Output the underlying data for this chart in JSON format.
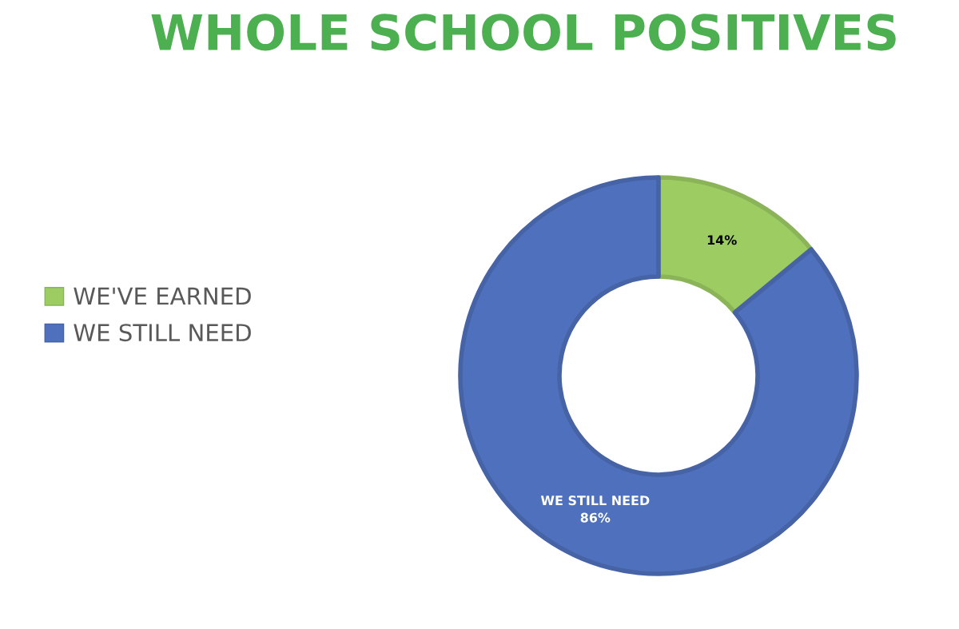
{
  "chart_data": {
    "type": "donut",
    "title": "WHOLE SCHOOL POSITIVES",
    "categories": [
      "WE'VE EARNED",
      "WE STILL NEED"
    ],
    "values": [
      14,
      86
    ],
    "colors": [
      "#9dcc63",
      "#4f70bd"
    ],
    "value_labels": [
      "14%",
      "WE STILL NEED\n86%"
    ],
    "legend": "left"
  }
}
